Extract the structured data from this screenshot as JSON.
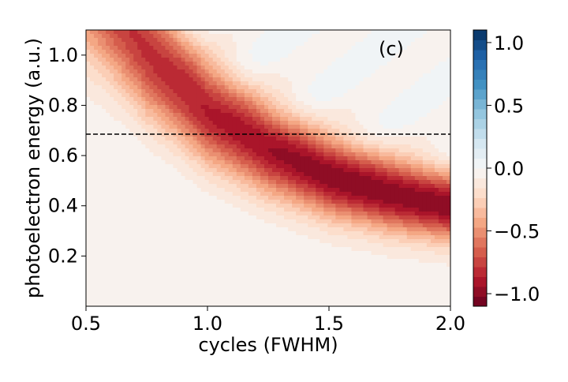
{
  "chart_data": {
    "type": "heatmap",
    "panel_label": "(c)",
    "xlabel": "cycles (FWHM)",
    "ylabel": "photoelectron energy (a.u.)",
    "xlim": [
      0.5,
      2.0
    ],
    "ylim": [
      0.0,
      1.1
    ],
    "x_ticks": [
      0.5,
      1.0,
      1.5,
      2.0
    ],
    "x_tick_labels": [
      "0.5",
      "1.0",
      "1.5",
      "2.0"
    ],
    "y_ticks": [
      0.2,
      0.4,
      0.6,
      0.8,
      1.0
    ],
    "y_tick_labels": [
      "0.2",
      "0.4",
      "0.6",
      "0.8",
      "1.0"
    ],
    "horizontal_reference_line": {
      "y": 0.685,
      "style": "dashed",
      "color": "#000000"
    },
    "colorbar": {
      "range": [
        -1.1,
        1.1
      ],
      "colormap": "RdBu",
      "ticks": [
        1.0,
        0.5,
        0.0,
        -0.5,
        -1.0
      ],
      "tick_labels": [
        "1.0",
        "0.5",
        "0.0",
        "−0.5",
        "−1.0"
      ],
      "levels": 28
    },
    "ridge": {
      "description_values": "minimum ridge energy vs cycles",
      "x": [
        0.5,
        0.75,
        1.0,
        1.25,
        1.5,
        1.75,
        2.0
      ],
      "y": [
        1.35,
        1.02,
        0.78,
        0.63,
        0.52,
        0.45,
        0.4
      ],
      "peak_value": -1.0
    },
    "grid": false
  }
}
